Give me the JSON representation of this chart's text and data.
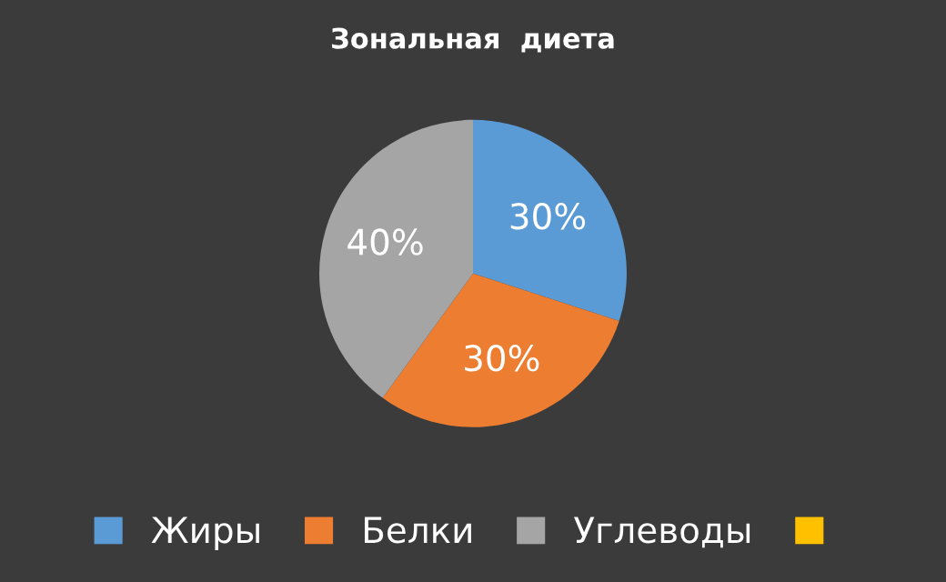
{
  "chart_data": {
    "type": "pie",
    "title": "Зональная  диета",
    "categories": [
      "Жиры",
      "Белки",
      "Углеводы",
      null
    ],
    "values": [
      30,
      30,
      40,
      0
    ],
    "colors": [
      "#5b9bd5",
      "#ed7d31",
      "#a5a5a5",
      "#ffc000"
    ],
    "value_labels": [
      "30%",
      "30%",
      "40%",
      null
    ],
    "legend": "bottom"
  }
}
